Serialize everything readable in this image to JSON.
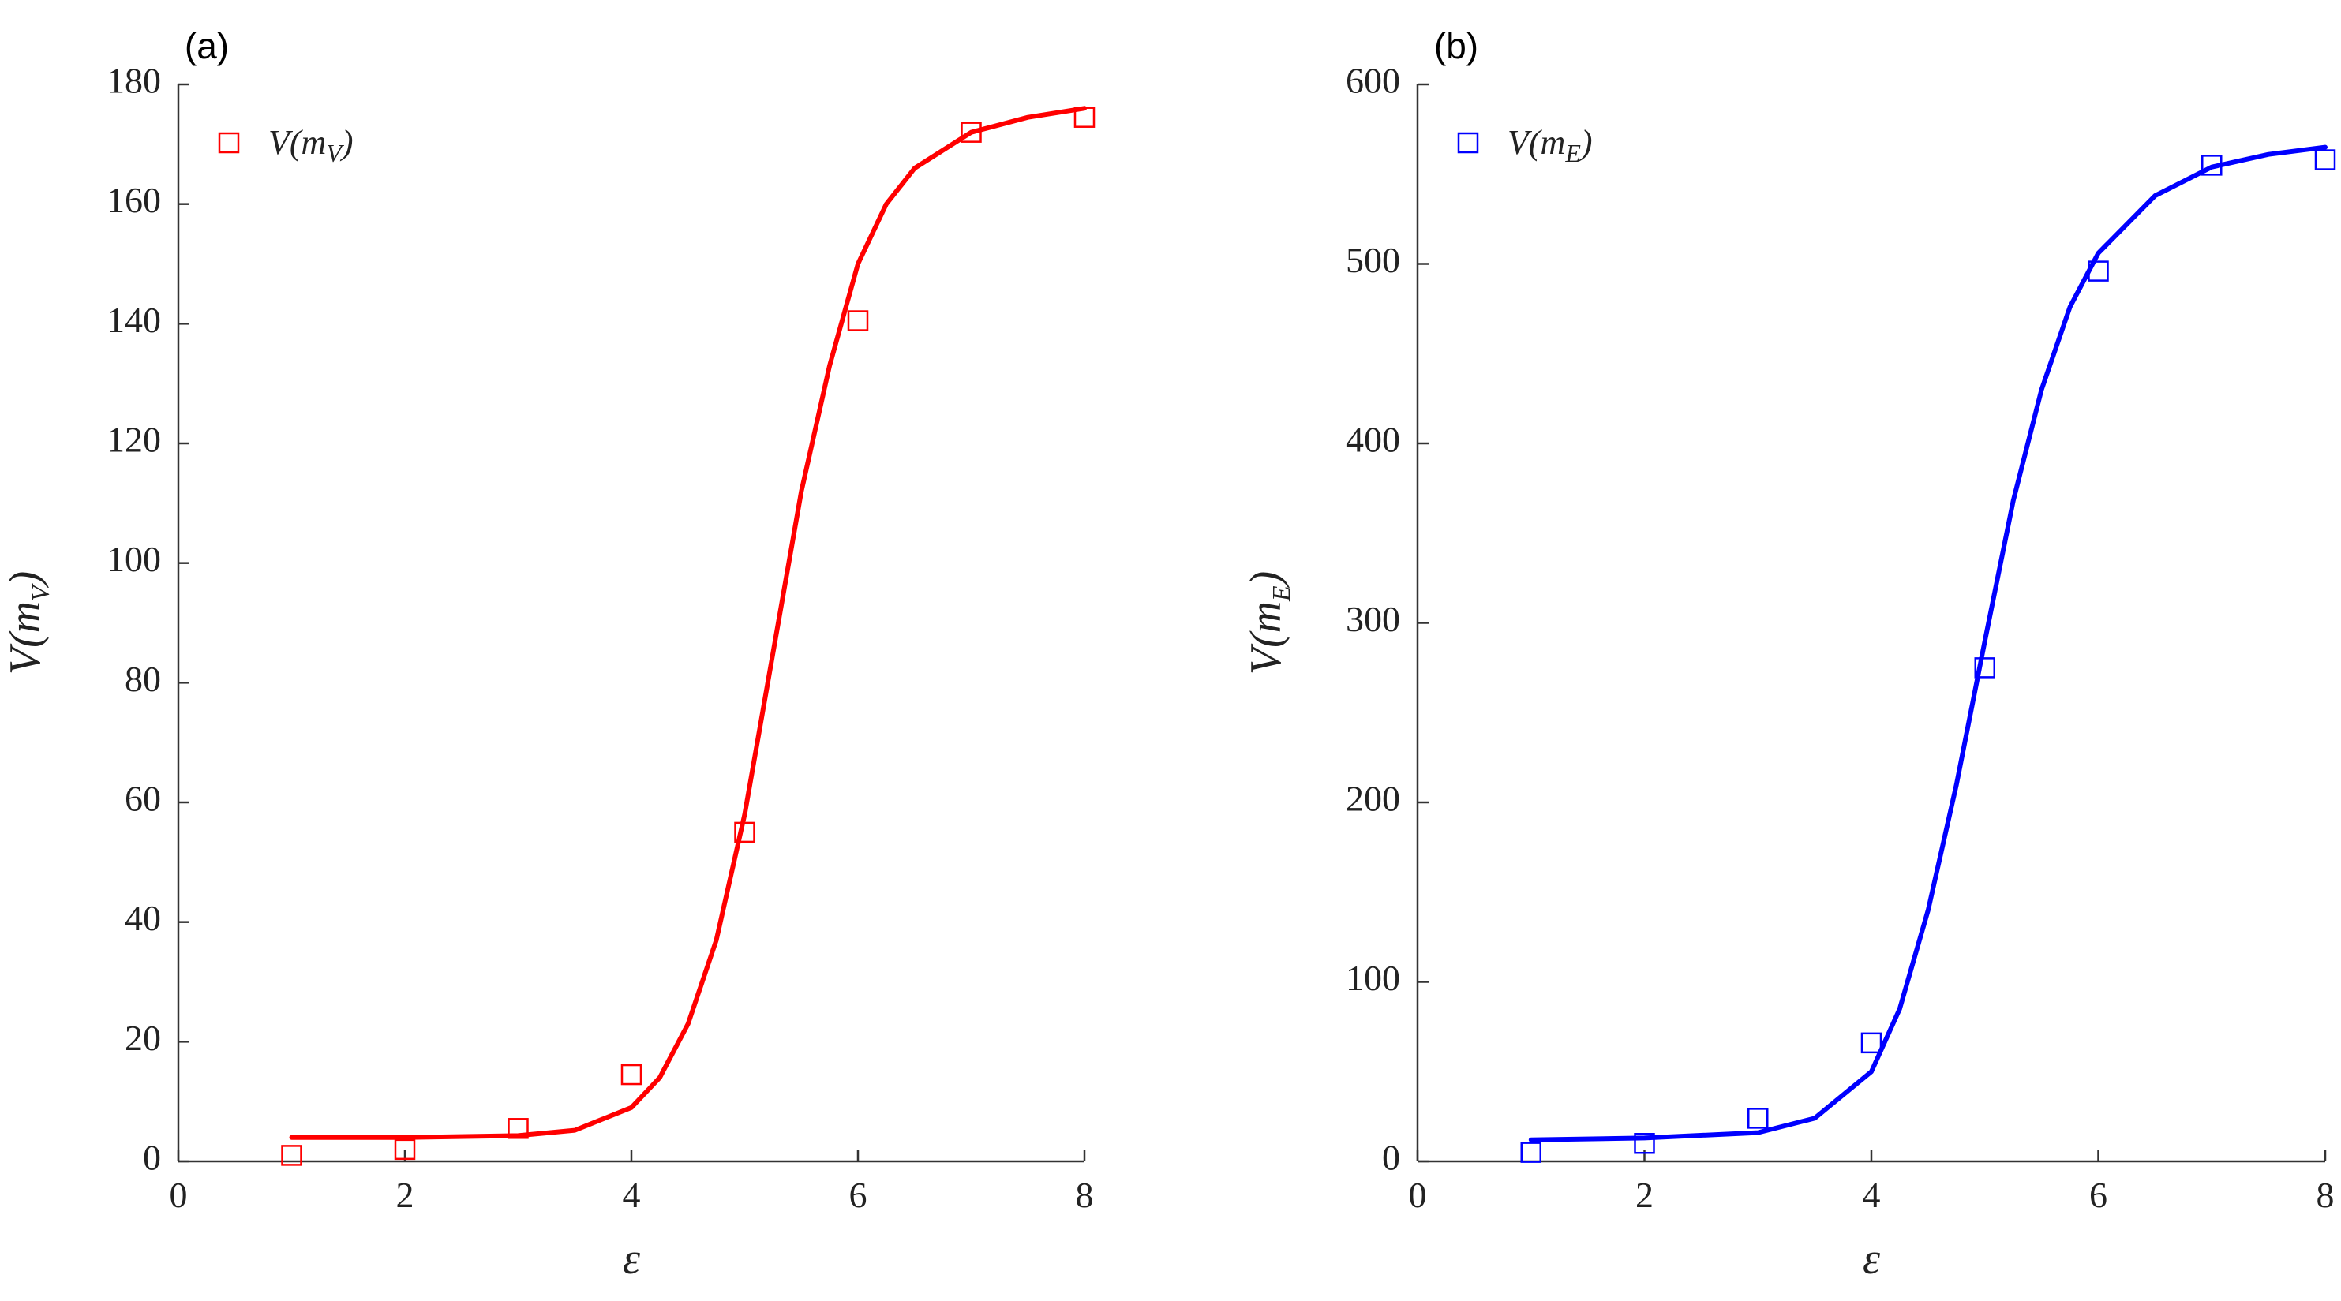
{
  "chart_data": [
    {
      "type": "scatter",
      "panel_label": "(a)",
      "color": "#ff0000",
      "xlabel": "ε",
      "ylabel": {
        "main": "V(m",
        "sub": "V",
        "close": ")"
      },
      "xlim": [
        0,
        8
      ],
      "ylim": [
        0,
        180
      ],
      "xticks": [
        0,
        2,
        4,
        6,
        8
      ],
      "yticks": [
        0,
        20,
        40,
        60,
        80,
        100,
        120,
        140,
        160,
        180
      ],
      "grid": false,
      "legend_placement": "top-left",
      "series": [
        {
          "name": {
            "main": "V(m",
            "sub": "V",
            "close": ")"
          },
          "marker": "open-square",
          "x": [
            1,
            2,
            3,
            4,
            5,
            6,
            7,
            8
          ],
          "y": [
            1,
            2,
            5.5,
            14.5,
            55,
            140.5,
            172,
            174.5
          ]
        }
      ],
      "fit_curve": {
        "style": "solid line",
        "x": [
          1,
          2,
          3,
          3.5,
          4,
          4.25,
          4.5,
          4.75,
          5,
          5.25,
          5.5,
          5.75,
          6,
          6.25,
          6.5,
          7,
          7.5,
          8
        ],
        "y": [
          4,
          4,
          4.3,
          5.2,
          9,
          14,
          23,
          37,
          58,
          85,
          112,
          133,
          150,
          160,
          166,
          172,
          174.5,
          176
        ]
      }
    },
    {
      "type": "scatter",
      "panel_label": "(b)",
      "color": "#0000ff",
      "xlabel": "ε",
      "ylabel": {
        "main": "V(m",
        "sub": "E",
        "close": ")"
      },
      "xlim": [
        0,
        8
      ],
      "ylim": [
        0,
        600
      ],
      "xticks": [
        0,
        2,
        4,
        6,
        8
      ],
      "yticks": [
        0,
        100,
        200,
        300,
        400,
        500,
        600
      ],
      "grid": false,
      "legend_placement": "top-left",
      "series": [
        {
          "name": {
            "main": "V(m",
            "sub": "E",
            "close": ")"
          },
          "marker": "open-square",
          "x": [
            1,
            2,
            3,
            4,
            5,
            6,
            7,
            8
          ],
          "y": [
            5,
            10,
            24,
            66,
            275,
            496,
            555,
            558
          ]
        }
      ],
      "fit_curve": {
        "style": "solid line",
        "x": [
          1,
          2,
          3,
          3.5,
          4,
          4.25,
          4.5,
          4.75,
          5,
          5.25,
          5.5,
          5.75,
          6,
          6.5,
          7,
          7.5,
          8
        ],
        "y": [
          12,
          13,
          16,
          24,
          50,
          85,
          140,
          210,
          290,
          368,
          430,
          476,
          506,
          538,
          554,
          561,
          565
        ]
      }
    }
  ]
}
